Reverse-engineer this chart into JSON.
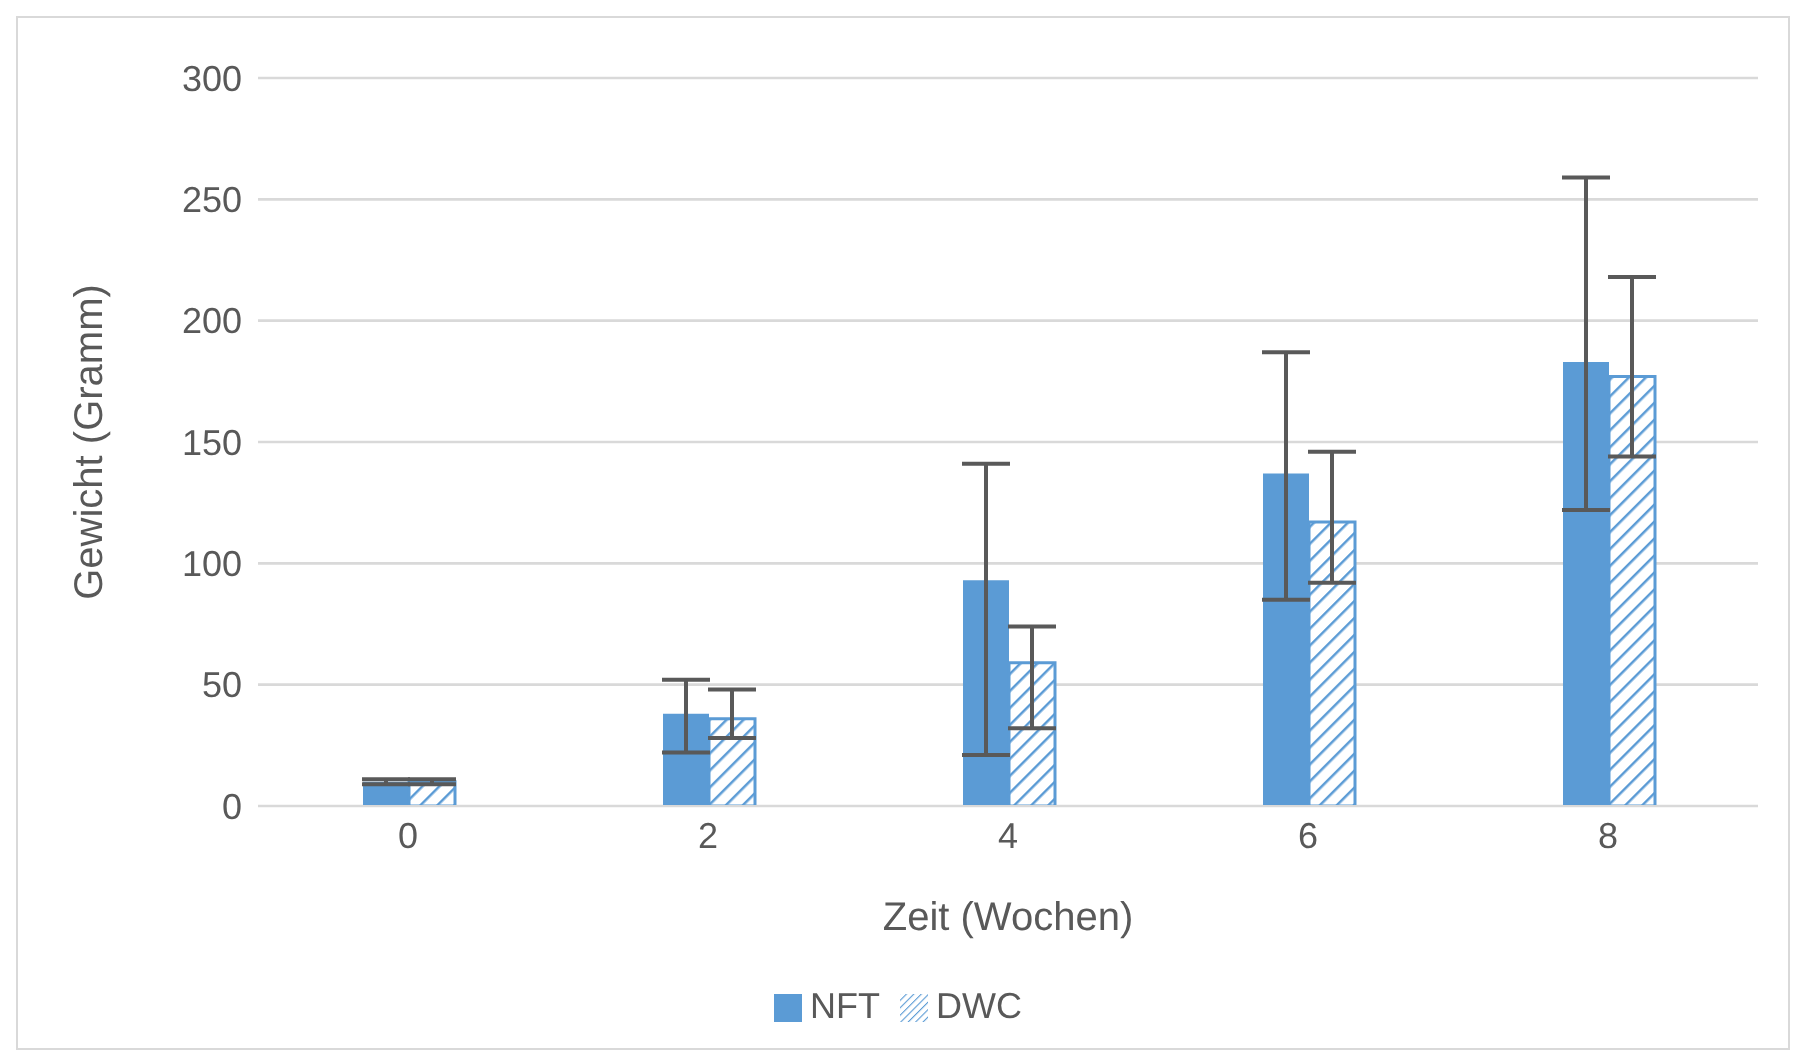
{
  "chart_data": {
    "type": "bar",
    "xlabel": "Zeit (Wochen)",
    "ylabel": "Gewicht (Gramm)",
    "categories": [
      "0",
      "2",
      "4",
      "6",
      "8"
    ],
    "series": [
      {
        "name": "NFT",
        "color": "#5b9bd5",
        "values": [
          10,
          38,
          93,
          137,
          183
        ],
        "errors": [
          [
            9,
            11
          ],
          [
            22,
            52
          ],
          [
            21,
            141
          ],
          [
            85,
            187
          ],
          [
            122,
            259
          ]
        ]
      },
      {
        "name": "DWC",
        "color": "#5b9bd5",
        "values": [
          10,
          36,
          59,
          117,
          177
        ],
        "errors": [
          [
            9,
            11
          ],
          [
            28,
            48
          ],
          [
            32,
            74
          ],
          [
            92,
            146
          ],
          [
            144,
            218
          ]
        ]
      }
    ],
    "ylim": [
      0,
      300
    ],
    "yticks": [
      0,
      50,
      100,
      150,
      200,
      250,
      300
    ],
    "grid": "y",
    "legend": "bottom"
  }
}
